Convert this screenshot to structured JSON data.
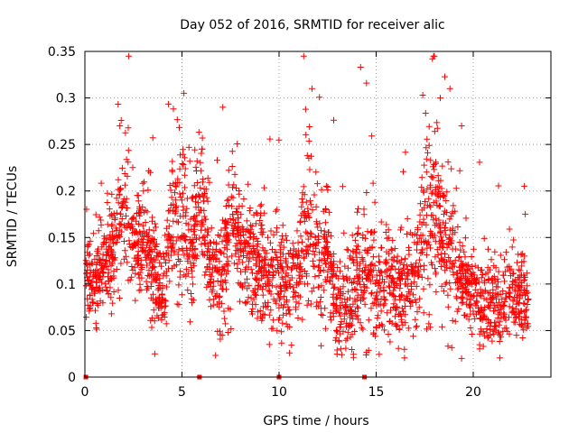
{
  "chart_data": {
    "type": "scatter",
    "title": "Day 052 of 2016, SRMTID for receiver alic",
    "xlabel": "GPS time / hours",
    "ylabel": "SRMTID / TECUs",
    "xlim": [
      0,
      24
    ],
    "ylim": [
      0,
      0.35
    ],
    "x_ticks": [
      0,
      5,
      10,
      15,
      20
    ],
    "y_ticks": [
      0,
      0.05,
      0.1,
      0.15,
      0.2,
      0.25,
      0.3,
      0.35
    ],
    "x_tick_labels": [
      "0",
      "5",
      "10",
      "15",
      "20"
    ],
    "y_tick_labels": [
      "0",
      "0.05",
      "0.1",
      "0.15",
      "0.2",
      "0.25",
      "0.3",
      "0.35"
    ],
    "grid": true,
    "marker": "+",
    "series_color": "#ff0000",
    "zero_points_x": [
      0.05,
      5.9,
      10.0,
      14.4
    ],
    "trend_x": [
      0.0,
      0.5,
      1.0,
      1.5,
      2.0,
      2.5,
      3.0,
      3.5,
      4.0,
      4.5,
      5.0,
      5.5,
      6.0,
      6.5,
      7.0,
      7.5,
      8.0,
      8.5,
      9.0,
      9.5,
      10.0,
      10.5,
      11.0,
      11.5,
      12.0,
      12.5,
      13.0,
      13.5,
      14.0,
      14.5,
      15.0,
      15.5,
      16.0,
      16.5,
      17.0,
      17.5,
      18.0,
      18.5,
      19.0,
      19.5,
      20.0,
      20.5,
      21.0,
      21.5,
      22.0,
      22.5,
      22.8
    ],
    "trend_mean": [
      0.11,
      0.1,
      0.11,
      0.13,
      0.18,
      0.14,
      0.15,
      0.12,
      0.09,
      0.17,
      0.18,
      0.14,
      0.19,
      0.11,
      0.1,
      0.17,
      0.14,
      0.13,
      0.12,
      0.11,
      0.11,
      0.1,
      0.12,
      0.17,
      0.12,
      0.13,
      0.07,
      0.08,
      0.1,
      0.12,
      0.09,
      0.11,
      0.08,
      0.1,
      0.11,
      0.17,
      0.18,
      0.15,
      0.12,
      0.1,
      0.09,
      0.08,
      0.08,
      0.07,
      0.09,
      0.08,
      0.08
    ],
    "trend_spread": [
      0.03,
      0.03,
      0.03,
      0.04,
      0.05,
      0.04,
      0.04,
      0.04,
      0.03,
      0.04,
      0.05,
      0.04,
      0.05,
      0.04,
      0.04,
      0.05,
      0.04,
      0.04,
      0.04,
      0.03,
      0.04,
      0.04,
      0.04,
      0.06,
      0.04,
      0.05,
      0.03,
      0.04,
      0.04,
      0.05,
      0.04,
      0.04,
      0.03,
      0.04,
      0.04,
      0.06,
      0.06,
      0.05,
      0.04,
      0.03,
      0.03,
      0.03,
      0.03,
      0.03,
      0.03,
      0.03,
      0.03
    ],
    "n_points": 2600,
    "notable_peaks": [
      {
        "x": 1.8,
        "y": 0.27
      },
      {
        "x": 5.1,
        "y": 0.305
      },
      {
        "x": 7.1,
        "y": 0.29
      },
      {
        "x": 11.7,
        "y": 0.31
      },
      {
        "x": 14.2,
        "y": 0.333
      },
      {
        "x": 14.5,
        "y": 0.316
      },
      {
        "x": 17.4,
        "y": 0.303
      },
      {
        "x": 17.9,
        "y": 0.342
      },
      {
        "x": 18.8,
        "y": 0.31
      },
      {
        "x": 18.3,
        "y": 0.3
      },
      {
        "x": 19.4,
        "y": 0.27
      },
      {
        "x": 9.5,
        "y": 0.035
      },
      {
        "x": 19.4,
        "y": 0.02
      }
    ]
  }
}
